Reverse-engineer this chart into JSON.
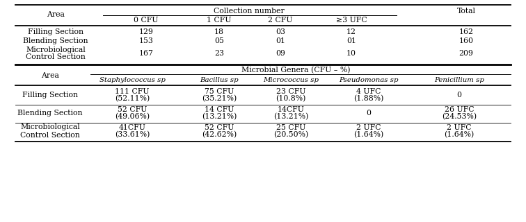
{
  "background_color": "#ffffff",
  "top_table": {
    "col_header_top": "Collection number",
    "col_headers": [
      "Area",
      "0 CFU",
      "1 CFU",
      "2 CFU",
      "≥3 UFC",
      "Total"
    ],
    "rows": [
      [
        "Filling Section",
        "129",
        "18",
        "03",
        "12",
        "162"
      ],
      [
        "Blending Section",
        "153",
        "05",
        "01",
        "01",
        "160"
      ],
      [
        "Microbiological\nControl Section",
        "167",
        "23",
        "09",
        "10",
        "209"
      ]
    ]
  },
  "bottom_table": {
    "col_header_top": "Microbial Genera (CFU – %)",
    "col_headers": [
      "Area",
      "Staphylococcus sp",
      "Bacillus sp",
      "Micrococcus sp",
      "Pseudomonas sp",
      "Penicillium sp"
    ],
    "rows": [
      [
        "Filling Section",
        "111 CFU",
        "(52.11%)",
        "75 CFU",
        "(35.21%)",
        "23 CFU",
        "(10.8%)",
        "4 UFC",
        "(1.88%)",
        "0"
      ],
      [
        "Blending Section",
        "52 CFU",
        "(49.06%)",
        "14 CFU",
        "(13.21%)",
        "14CFU",
        "(13.21%)",
        "0",
        "",
        "26 UFC",
        "(24.53%)"
      ],
      [
        "Microbiological\nControl Section",
        "41CFU",
        "(33.61%)",
        "52 CFU",
        "(42.62%)",
        "25 CFU",
        "(20.50%)",
        "2 UFC",
        "(1.64%)",
        "2 UFC",
        "(1.64%)"
      ]
    ]
  }
}
